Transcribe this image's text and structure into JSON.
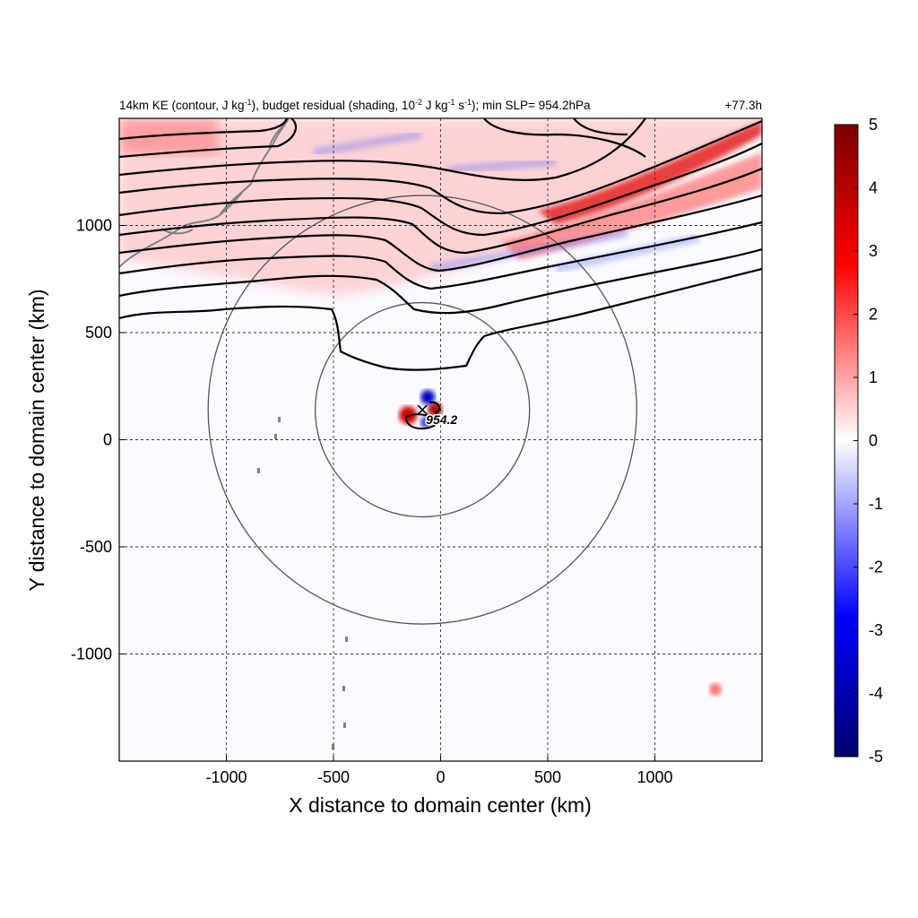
{
  "chart_data": {
    "type": "heatmap",
    "title_left_parts": [
      {
        "t": "14km KE (contour, J kg"
      },
      {
        "t": "-1",
        "sup": true
      },
      {
        "t": "), budget residual (shading, 10"
      },
      {
        "t": "-2",
        "sup": true
      },
      {
        "t": " J kg"
      },
      {
        "t": "-1",
        "sup": true
      },
      {
        "t": " s"
      },
      {
        "t": "-1",
        "sup": true
      },
      {
        "t": "); min SLP= 954.2hPa"
      }
    ],
    "title_right": "+77.3h",
    "xlabel": "X distance to domain center (km)",
    "ylabel": "Y distance to domain center (km)",
    "xlim": [
      -1500,
      1500
    ],
    "ylim": [
      -1500,
      1500
    ],
    "xticks": [
      -1000,
      -500,
      0,
      500,
      1000
    ],
    "yticks": [
      -1000,
      -500,
      0,
      500,
      1000
    ],
    "grid": true,
    "colorbar": {
      "min": -5,
      "max": 5,
      "ticks": [
        -5,
        -4,
        -3,
        -2,
        -1,
        0,
        1,
        2,
        3,
        4,
        5
      ],
      "colors": [
        "#00006e",
        "#0000ff",
        "#ffffff",
        "#ff0000",
        "#7a0000"
      ]
    },
    "storm_center": {
      "x": -85,
      "y": 140,
      "label": "954.2"
    },
    "range_circles_km": [
      500,
      1000
    ],
    "contour_color": "#000000",
    "coastline_color": "#808080",
    "shading_color_pos": "#ff4040",
    "shading_color_neg": "#5060ff"
  }
}
